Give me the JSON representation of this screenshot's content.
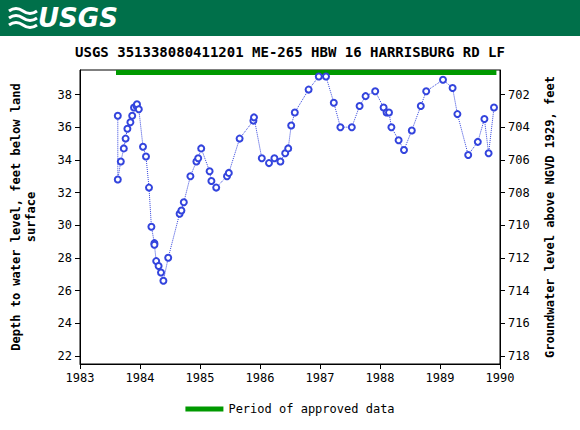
{
  "header": "USGS",
  "chart_data": {
    "type": "line",
    "title": "USGS 351338080411201 ME-265 HBW 16 HARRISBURG RD LF",
    "ylabel": "Depth to water level, feet below land\nsurface",
    "y2label": "Groundwater level above NGVD 1929, feet",
    "xlim": [
      1983,
      1990
    ],
    "xticks": [
      1983,
      1984,
      1985,
      1986,
      1987,
      1988,
      1989,
      1990
    ],
    "ylim": [
      21.5,
      39.5
    ],
    "yticks": [
      22,
      24,
      26,
      28,
      30,
      32,
      34,
      36,
      38
    ],
    "y2lim": [
      718.5,
      700.5
    ],
    "y2ticks": [
      702,
      704,
      706,
      708,
      710,
      712,
      714,
      716,
      718
    ],
    "grid": false,
    "legend": "bottom",
    "series": [
      {
        "color": "#3344dd",
        "marker": "circle",
        "line_style": "dotted",
        "x": [
          1983.63,
          1983.63,
          1983.68,
          1983.73,
          1983.76,
          1983.79,
          1983.84,
          1983.87,
          1983.9,
          1983.94,
          1983.95,
          1983.98,
          1984.05,
          1984.1,
          1984.15,
          1984.19,
          1984.24,
          1984.24,
          1984.27,
          1984.31,
          1984.35,
          1984.39,
          1984.47,
          1984.66,
          1984.69,
          1984.73,
          1984.84,
          1984.94,
          1984.97,
          1985.02,
          1985.16,
          1985.19,
          1985.27,
          1985.45,
          1985.48,
          1985.66,
          1985.89,
          1985.9,
          1986.03,
          1986.15,
          1986.24,
          1986.34,
          1986.42,
          1986.47,
          1986.52,
          1986.58,
          1986.81,
          1986.98,
          1987.1,
          1987.23,
          1987.34,
          1987.53,
          1987.66,
          1987.76,
          1987.92,
          1988.06,
          1988.11,
          1988.15,
          1988.19,
          1988.31,
          1988.4,
          1988.53,
          1988.68,
          1988.77,
          1989.05,
          1989.21,
          1989.29,
          1989.47,
          1989.63,
          1989.74,
          1989.81,
          1989.9
        ],
        "values": [
          36.7,
          32.8,
          33.9,
          34.7,
          35.3,
          35.9,
          36.3,
          36.7,
          37.2,
          37.3,
          37.4,
          37.1,
          34.8,
          34.2,
          32.3,
          29.9,
          28.9,
          28.8,
          27.8,
          27.5,
          27.1,
          26.6,
          28.0,
          30.7,
          30.9,
          31.4,
          33.0,
          33.9,
          34.1,
          34.7,
          33.3,
          32.7,
          32.3,
          33.0,
          33.2,
          35.3,
          36.4,
          36.6,
          34.1,
          33.8,
          34.1,
          33.9,
          34.4,
          34.7,
          36.1,
          36.9,
          38.3,
          39.1,
          39.1,
          37.5,
          36.0,
          36.0,
          37.3,
          37.9,
          38.2,
          37.2,
          36.9,
          36.9,
          36.0,
          35.2,
          34.6,
          35.8,
          37.3,
          38.2,
          38.9,
          38.4,
          36.8,
          34.3,
          35.1,
          36.5,
          34.4,
          37.2
        ]
      }
    ],
    "approved_period": {
      "name": "Period of approved data",
      "x": [
        1983.6,
        1989.94
      ],
      "y": 39.35,
      "color": "#009900"
    }
  }
}
